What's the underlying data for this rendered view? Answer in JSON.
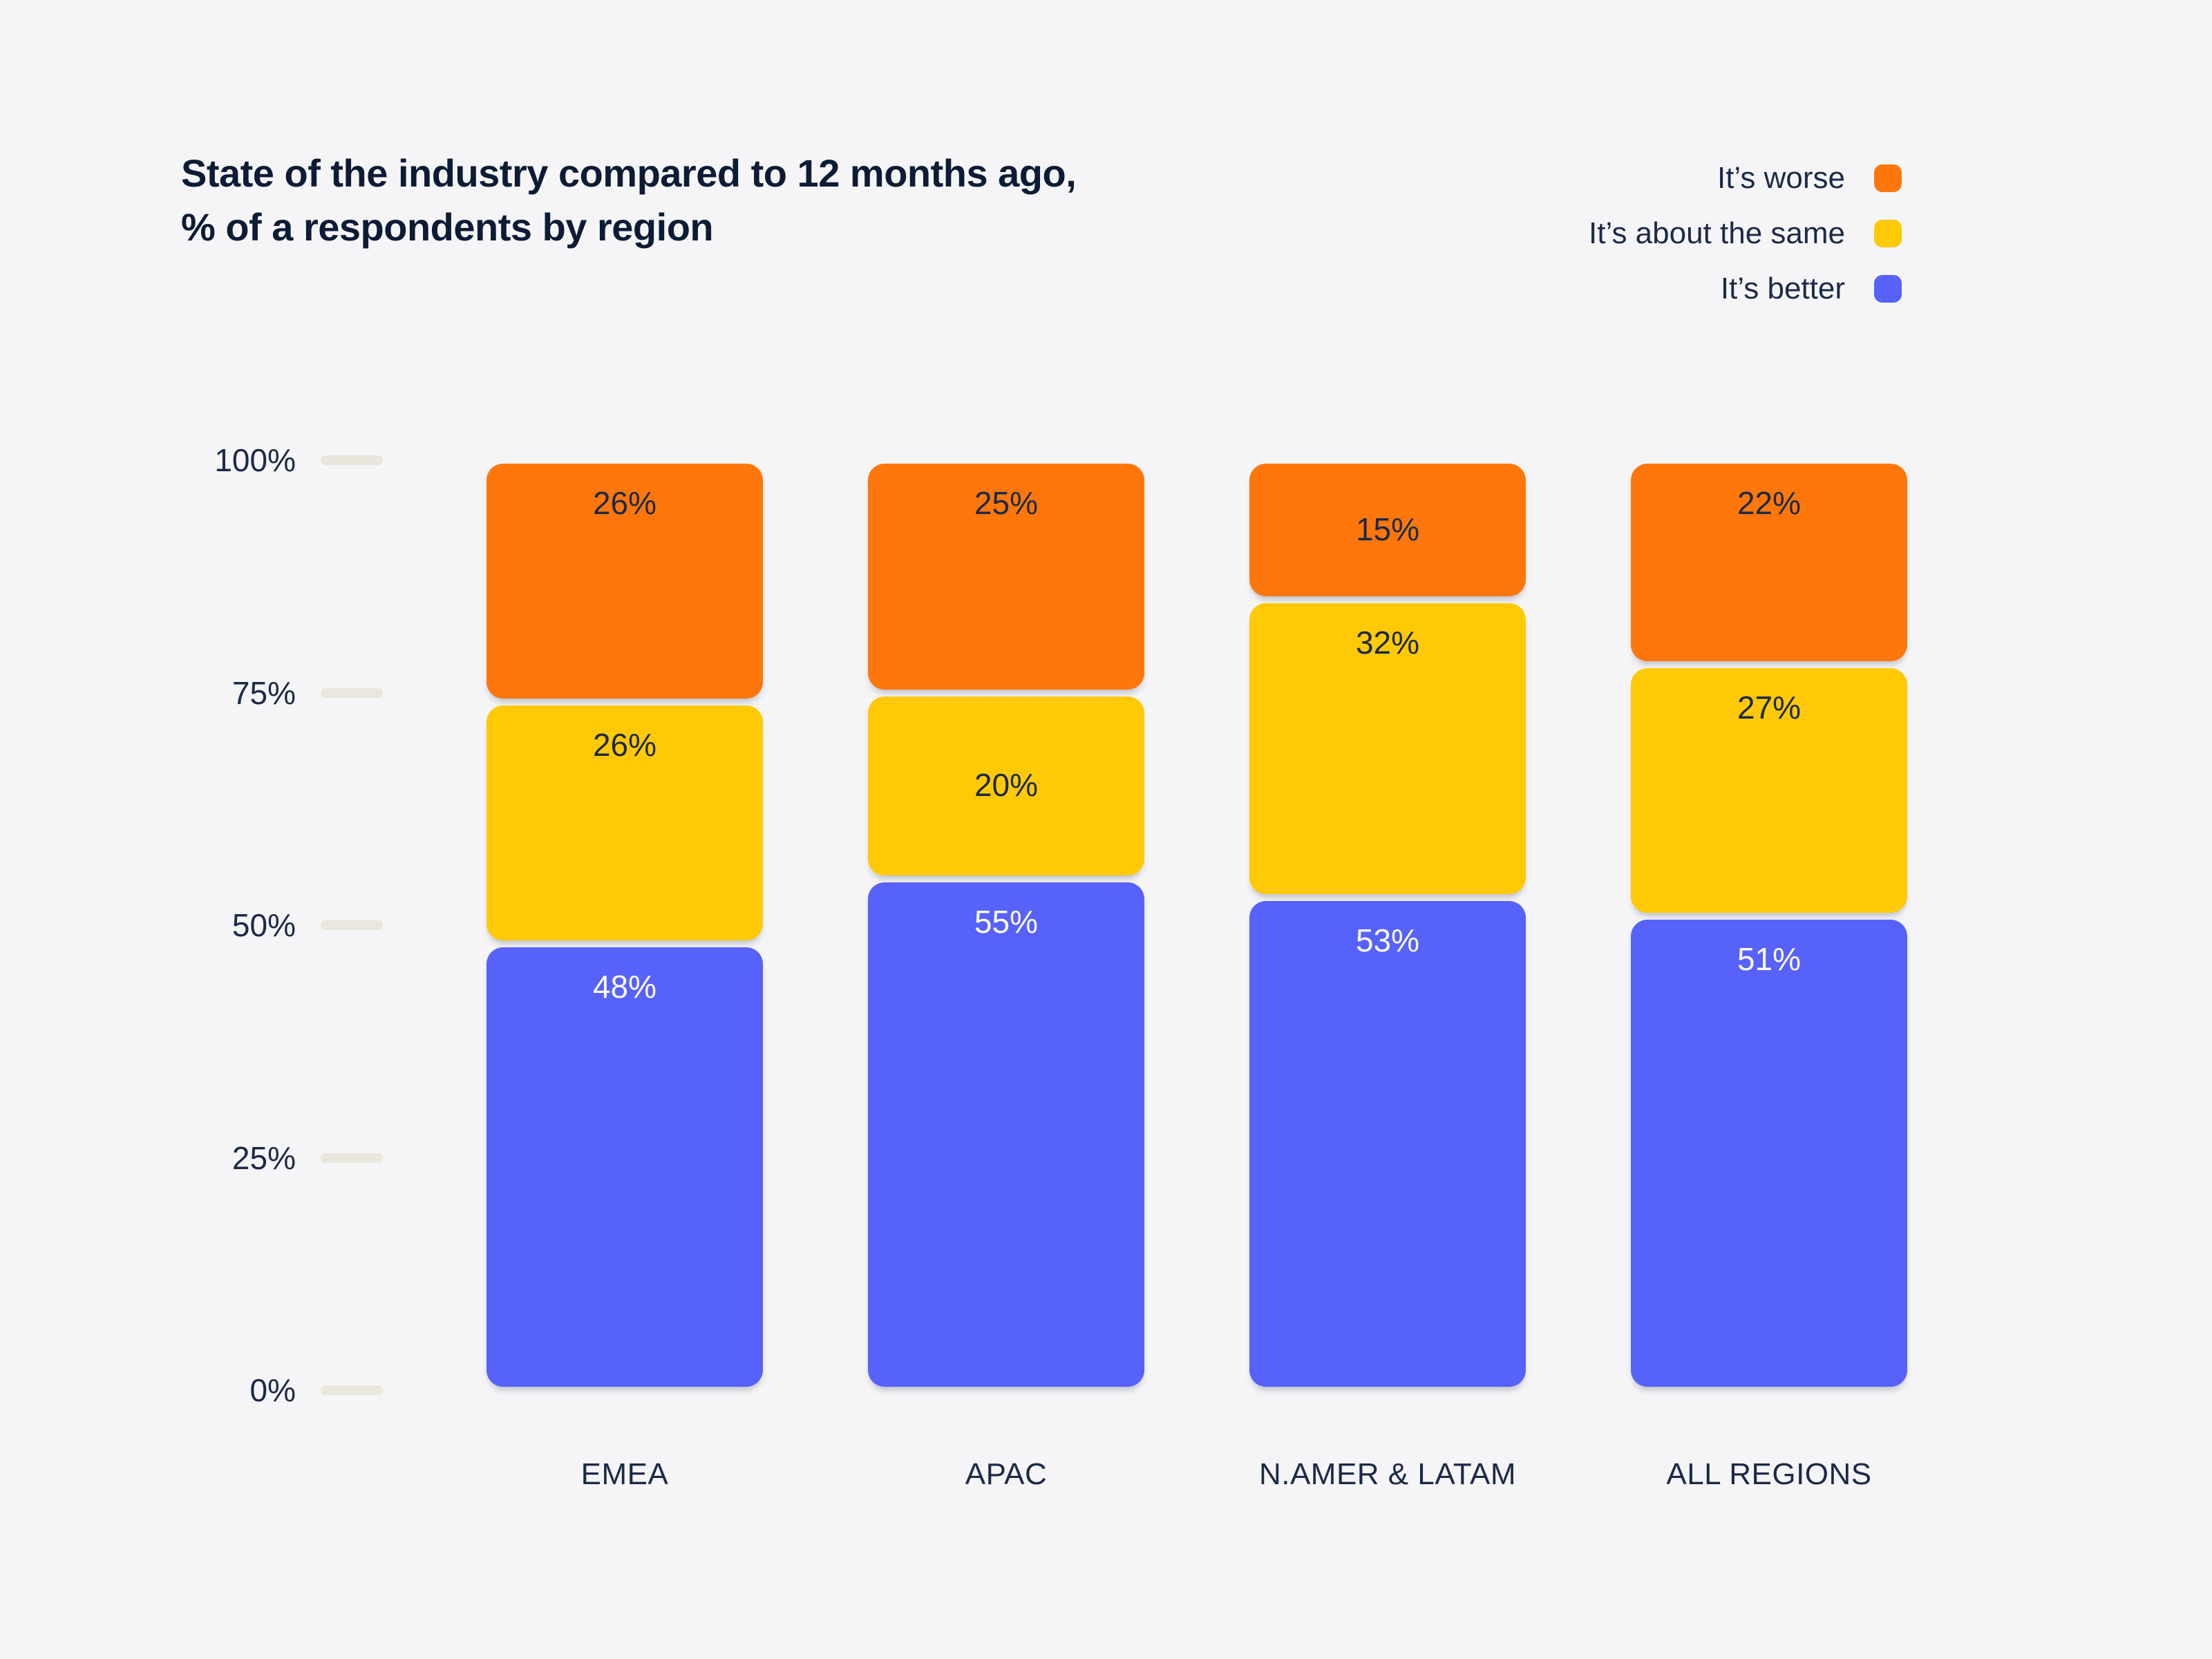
{
  "title": {
    "line1": "State of the industry compared to 12 months ago,",
    "line2": "% of a respondents by region"
  },
  "chart_data": {
    "type": "bar",
    "stacked": true,
    "title": "State of the industry compared to 12 months ago, % of a respondents by region",
    "categories": [
      "EMEA",
      "APAC",
      "N.AMER & LATAM",
      "ALL REGIONS"
    ],
    "series": [
      {
        "name": "It’s worse",
        "values": [
          26,
          25,
          15,
          22
        ],
        "color": "#FF770B",
        "label_color": "#1B2A47"
      },
      {
        "name": "It’s about the same",
        "values": [
          26,
          20,
          32,
          27
        ],
        "color": "#FFC906",
        "label_color": "#1B2A47"
      },
      {
        "name": "It’s better",
        "values": [
          48,
          55,
          53,
          51
        ],
        "color": "#5762FA",
        "label_color": "#FAFAFF"
      }
    ],
    "series_order_note": "series listed top-to-bottom as stacked; totals = 100 per category",
    "value_suffix": "%",
    "y_axis": {
      "min": 0,
      "max": 100,
      "ticks": [
        100,
        75,
        50,
        25,
        0
      ],
      "tick_label_suffix": "%"
    },
    "legend_position": "top-right",
    "grid": false,
    "colors": {
      "background": "#F5F5F7",
      "tick_mark": "#E9E6DC",
      "axis_text": "#1B2A47",
      "title_text": "#0D1C35"
    }
  }
}
